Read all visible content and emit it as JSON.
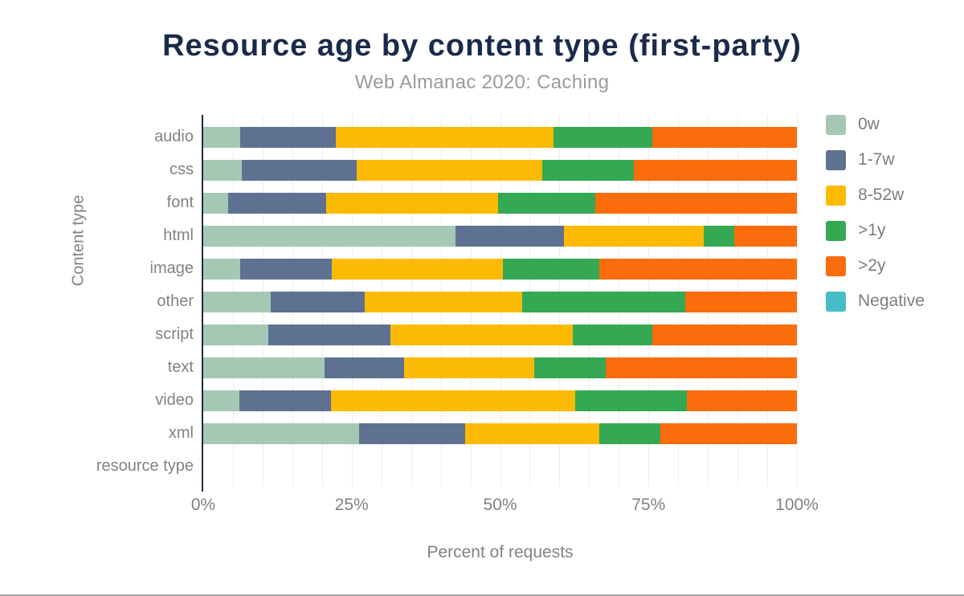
{
  "chart": {
    "title": "Resource age by content type (first-party)",
    "subtitle": "Web Almanac 2020: Caching",
    "x_axis_title": "Percent of requests",
    "y_axis_title": "Content type"
  },
  "colors": {
    "title_navy": "#1a2b49",
    "axis_line": "#1c2b45",
    "gridline": "#ededed",
    "label_gray": "#828282",
    "subtitle_gray": "#9b9b9b",
    "bottom_rule": "#a9a9a9"
  },
  "chart_data": {
    "type": "bar",
    "orientation": "horizontal",
    "stacked": true,
    "title": "Resource age by content type (first-party)",
    "subtitle": "Web Almanac 2020: Caching",
    "xlabel": "Percent of requests",
    "ylabel": "Content type",
    "xlim": [
      0,
      100
    ],
    "x_tick_values": [
      0,
      25,
      50,
      75,
      100
    ],
    "x_tick_labels": [
      "0%",
      "25%",
      "50%",
      "75%",
      "100%"
    ],
    "grid_step": 5,
    "grid": true,
    "legend_position": "right",
    "categories": [
      "audio",
      "css",
      "font",
      "html",
      "image",
      "other",
      "script",
      "text",
      "video",
      "xml",
      "resource type"
    ],
    "series": [
      {
        "name": "0w",
        "color": "#a5c8b4",
        "values": [
          6.2,
          6.5,
          4.2,
          42.5,
          6.2,
          11.3,
          10.9,
          20.4,
          6.1,
          26.2,
          0
        ]
      },
      {
        "name": "1-7w",
        "color": "#5e7191",
        "values": [
          16.1,
          19.4,
          16.5,
          18.3,
          15.5,
          15.9,
          20.6,
          13.4,
          15.4,
          17.9,
          0
        ]
      },
      {
        "name": "8-52w",
        "color": "#fcba05",
        "values": [
          36.7,
          31.2,
          28.9,
          23.5,
          28.8,
          26.5,
          30.7,
          22.0,
          41.1,
          22.6,
          0
        ]
      },
      {
        "name": ">1y",
        "color": "#34a853",
        "values": [
          16.6,
          15.4,
          16.4,
          5.2,
          16.2,
          27.5,
          13.5,
          12.0,
          18.9,
          10.3,
          0
        ]
      },
      {
        "name": ">2y",
        "color": "#fb6c0c",
        "values": [
          24.4,
          27.5,
          34.0,
          10.5,
          33.3,
          18.8,
          24.3,
          32.2,
          18.5,
          23.0,
          0
        ]
      },
      {
        "name": "Negative",
        "color": "#46bdc6",
        "values": [
          0,
          0,
          0,
          0,
          0,
          0,
          0,
          0,
          0,
          0,
          0
        ]
      }
    ]
  }
}
